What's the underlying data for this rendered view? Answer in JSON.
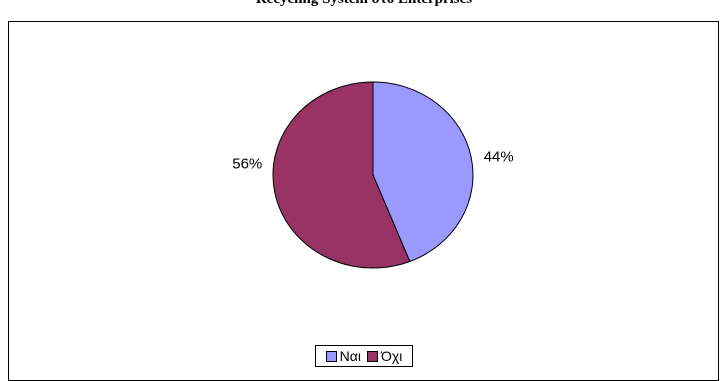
{
  "chart_data": {
    "type": "pie",
    "title": "Recycling System στο Enterprises",
    "slices": [
      {
        "name": "Ναι",
        "value": 44,
        "label": "44%",
        "color": "#9999FF"
      },
      {
        "name": "Όχι",
        "value": 56,
        "label": "56%",
        "color": "#993366"
      }
    ],
    "legend_position": "bottom"
  }
}
